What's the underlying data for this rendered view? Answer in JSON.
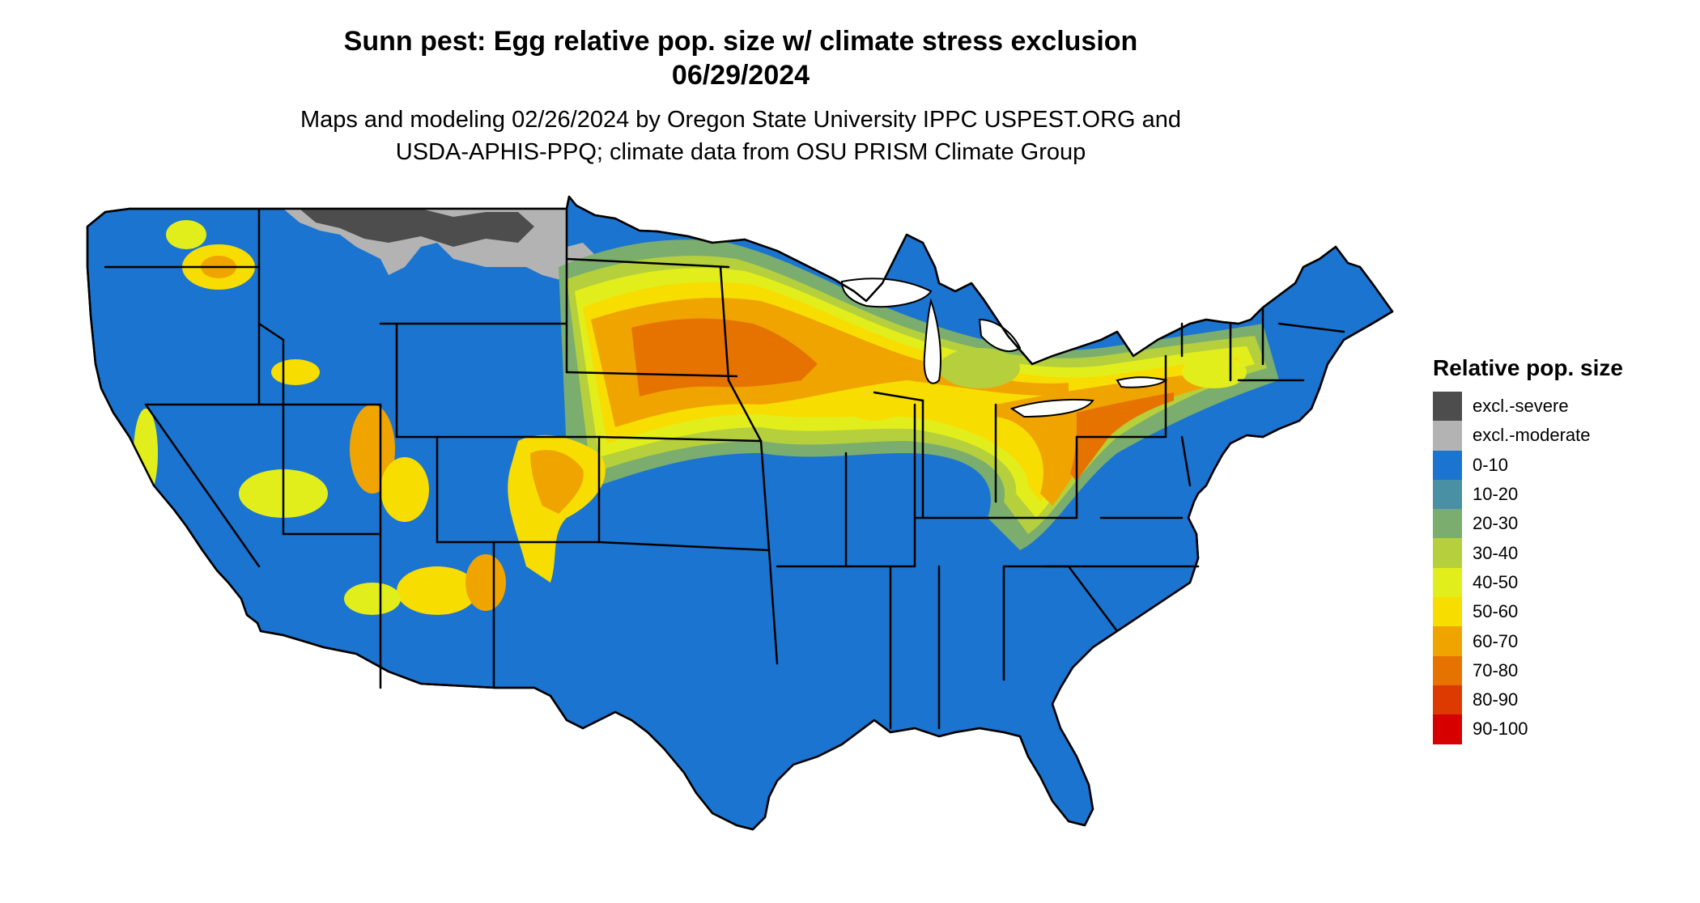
{
  "title": {
    "line1": "Sunn pest: Egg relative pop. size w/ climate stress exclusion",
    "line2": "06/29/2024"
  },
  "subtitle": {
    "line1": "Maps and modeling 02/26/2024 by Oregon State University IPPC USPEST.ORG and",
    "line2": "USDA-APHIS-PPQ; climate data from OSU PRISM Climate Group"
  },
  "legend": {
    "title": "Relative pop. size",
    "items": [
      {
        "label": "excl.-severe",
        "color": "#4d4d4d"
      },
      {
        "label": "excl.-moderate",
        "color": "#b3b3b3"
      },
      {
        "label": "0-10",
        "color": "#1b74d0"
      },
      {
        "label": "10-20",
        "color": "#4a90a4"
      },
      {
        "label": "20-30",
        "color": "#7aad6e"
      },
      {
        "label": "30-40",
        "color": "#b5d03c"
      },
      {
        "label": "40-50",
        "color": "#e2ee1c"
      },
      {
        "label": "50-60",
        "color": "#f8dd00"
      },
      {
        "label": "60-70",
        "color": "#f0a400"
      },
      {
        "label": "70-80",
        "color": "#e67300"
      },
      {
        "label": "80-90",
        "color": "#dc3a00"
      },
      {
        "label": "90-100",
        "color": "#d60000"
      }
    ]
  },
  "map": {
    "region": "Contiguous United States",
    "base_color": "#1b74d0",
    "border_color": "#000000"
  }
}
